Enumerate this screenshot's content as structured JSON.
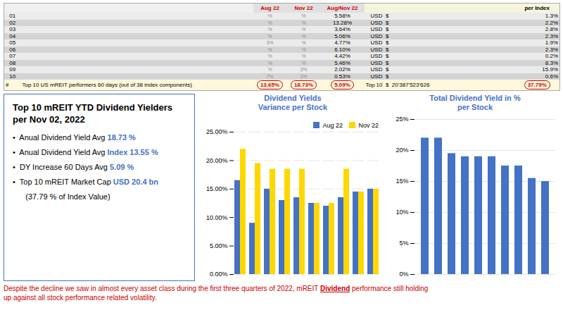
{
  "chart_data": [
    {
      "type": "table",
      "color": "#CC0000",
      "categories": [
        "01",
        "02",
        "03",
        "04",
        "05",
        "06",
        "07",
        "08",
        "09",
        "10"
      ],
      "series": [
        {
          "name": "Aug 22",
          "color": "#CC0000",
          "value_labels": [
            "%",
            "%",
            "%",
            "%",
            "3%",
            "%",
            "%",
            "%",
            "%",
            "7%"
          ],
          "total_label": "13.65%"
        },
        {
          "name": "Nov 22",
          "color": "#CC0000",
          "value_labels": [
            "%",
            "%",
            "%",
            "%",
            "%",
            "%",
            "%",
            "%",
            "3%",
            "3%"
          ],
          "total_label": "18.73%"
        },
        {
          "name": "Aug/Nov 22",
          "color": "#CC0000",
          "value_labels": [
            "5.58%",
            "13.28%",
            "3.64%",
            "5.06%",
            "4.77%",
            "6.10%",
            "4.42%",
            "5.46%",
            "2.02%",
            "0.53%"
          ],
          "total_label": "5.09%"
        },
        {
          "name": null,
          "value_labels": [
            "USD  $",
            "USD  $",
            "USD  $",
            "USD  $",
            "USD  $",
            "USD  $",
            "USD  $",
            "USD  $",
            "USD  $",
            "USD  $"
          ],
          "total_label": "Top 10  $  20'387'523'626"
        },
        {
          "name": "per Index",
          "value_labels": [
            "1.3%",
            "2.2%",
            "2.8%",
            "2.3%",
            "1.9%",
            "2.3%",
            "0.2%",
            "8.3%",
            "15.9%",
            "0.6%"
          ],
          "total_label": "37.79%"
        }
      ],
      "annotations": [
        "#",
        "Top 10 US mREIT performers 60 days (out of 38 index components)"
      ]
    },
    {
      "type": "text",
      "color": "#4472C4",
      "title": "Top 10 mREIT YTD Dividend Yielders per Nov 02, 2022",
      "annotations": [
        [
          "•  Anual Dividend Yield Avg ",
          "18.73 %"
        ],
        [
          "•  Anual Dividend Yield Avg ",
          "Index ",
          "13.55 %"
        ],
        [
          "•  DY Increase 60 Days Avg ",
          "5.09 %"
        ],
        [
          "•  Top 10 mREIT Market Cap ",
          "USD 20.4 bn"
        ],
        [
          "      (37.79 % of Index Value)"
        ]
      ]
    },
    {
      "type": "bar",
      "title": "Dividend Yields\nVariance per Stock",
      "categories": [
        null,
        null,
        null,
        null,
        null,
        null,
        null,
        null,
        null,
        null
      ],
      "series": [
        {
          "name": "Aug 22",
          "color": "#4472C4",
          "values": [
            16.5,
            9.0,
            15.0,
            13.0,
            13.5,
            12.5,
            12.0,
            13.5,
            14.5,
            15.0
          ]
        },
        {
          "name": "Nov 22",
          "color": "#FFD700",
          "values": [
            22.0,
            19.5,
            18.5,
            18.5,
            18.5,
            12.5,
            12.5,
            18.5,
            14.5,
            15.0
          ]
        }
      ],
      "ylim": [
        0,
        25
      ],
      "yticks": [
        {
          "value": 0,
          "label": "0.00%"
        },
        {
          "value": 5,
          "label": "5.00%"
        },
        {
          "value": 10,
          "label": "10.00%"
        },
        {
          "value": 15,
          "label": "15.00%"
        },
        {
          "value": 20,
          "label": "20.00%"
        },
        {
          "value": 25,
          "label": "25.00%"
        }
      ],
      "grid": true,
      "legend": "upper right",
      "tick_labels": "y"
    },
    {
      "type": "bar",
      "title": "Total Dividend Yield in %\nper Stock",
      "categories": [
        null,
        null,
        null,
        null,
        null,
        null,
        null,
        null,
        null,
        null
      ],
      "values": [
        22.0,
        22.0,
        19.5,
        19.0,
        19.0,
        19.0,
        17.5,
        17.5,
        15.5,
        15.0
      ],
      "color": "#4472C4",
      "ylim": [
        0,
        25
      ],
      "yticks": [
        {
          "value": 0,
          "label": "0%"
        },
        {
          "value": 5,
          "label": "5%"
        },
        {
          "value": 10,
          "label": "10%"
        },
        {
          "value": 15,
          "label": "15%"
        },
        {
          "value": 20,
          "label": "20%"
        },
        {
          "value": 25,
          "label": "25%"
        }
      ],
      "grid": true,
      "tick_labels": "y"
    },
    {
      "type": "text",
      "color": "#CC0000",
      "annotations": [
        "Despite the decline we saw in almost every asset class during the first three quarters of 2022, mREIT ",
        "Dividend",
        " performance still holding",
        "up against all stock performance related volatility."
      ]
    }
  ]
}
